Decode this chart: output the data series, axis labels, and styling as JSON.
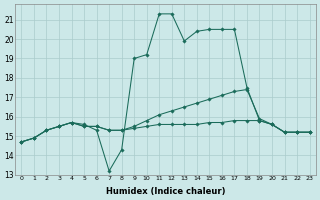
{
  "xlabel": "Humidex (Indice chaleur)",
  "background_color": "#cce8e8",
  "grid_color": "#aacccc",
  "line_color": "#1a6b5a",
  "xlim": [
    -0.5,
    23.5
  ],
  "ylim": [
    13,
    21.8
  ],
  "xticks": [
    0,
    1,
    2,
    3,
    4,
    5,
    6,
    7,
    8,
    9,
    10,
    11,
    12,
    13,
    14,
    15,
    16,
    17,
    18,
    19,
    20,
    21,
    22,
    23
  ],
  "yticks": [
    13,
    14,
    15,
    16,
    17,
    18,
    19,
    20,
    21
  ],
  "series": [
    {
      "x": [
        0,
        1,
        2,
        3,
        4,
        5,
        6,
        7,
        8,
        9,
        10,
        11,
        12,
        13,
        14,
        15,
        16,
        17,
        18,
        19,
        20,
        21,
        22,
        23
      ],
      "y": [
        14.7,
        14.9,
        15.3,
        15.5,
        15.7,
        15.6,
        15.3,
        13.2,
        14.3,
        19.0,
        19.2,
        21.3,
        21.3,
        19.9,
        20.4,
        20.5,
        20.5,
        20.5,
        17.5,
        15.8,
        15.6,
        15.2,
        15.2,
        15.2
      ]
    },
    {
      "x": [
        0,
        1,
        2,
        3,
        4,
        5,
        6,
        7,
        8,
        9,
        10,
        11,
        12,
        13,
        14,
        15,
        16,
        17,
        18,
        19,
        20,
        21,
        22,
        23
      ],
      "y": [
        14.7,
        14.9,
        15.3,
        15.5,
        15.7,
        15.5,
        15.5,
        15.3,
        15.3,
        15.5,
        15.8,
        16.1,
        16.3,
        16.5,
        16.7,
        16.9,
        17.1,
        17.3,
        17.4,
        15.9,
        15.6,
        15.2,
        15.2,
        15.2
      ]
    },
    {
      "x": [
        0,
        1,
        2,
        3,
        4,
        5,
        6,
        7,
        8,
        9,
        10,
        11,
        12,
        13,
        14,
        15,
        16,
        17,
        18,
        19,
        20,
        21,
        22,
        23
      ],
      "y": [
        14.7,
        14.9,
        15.3,
        15.5,
        15.7,
        15.5,
        15.5,
        15.3,
        15.3,
        15.4,
        15.5,
        15.6,
        15.6,
        15.6,
        15.6,
        15.7,
        15.7,
        15.8,
        15.8,
        15.8,
        15.6,
        15.2,
        15.2,
        15.2
      ]
    }
  ]
}
